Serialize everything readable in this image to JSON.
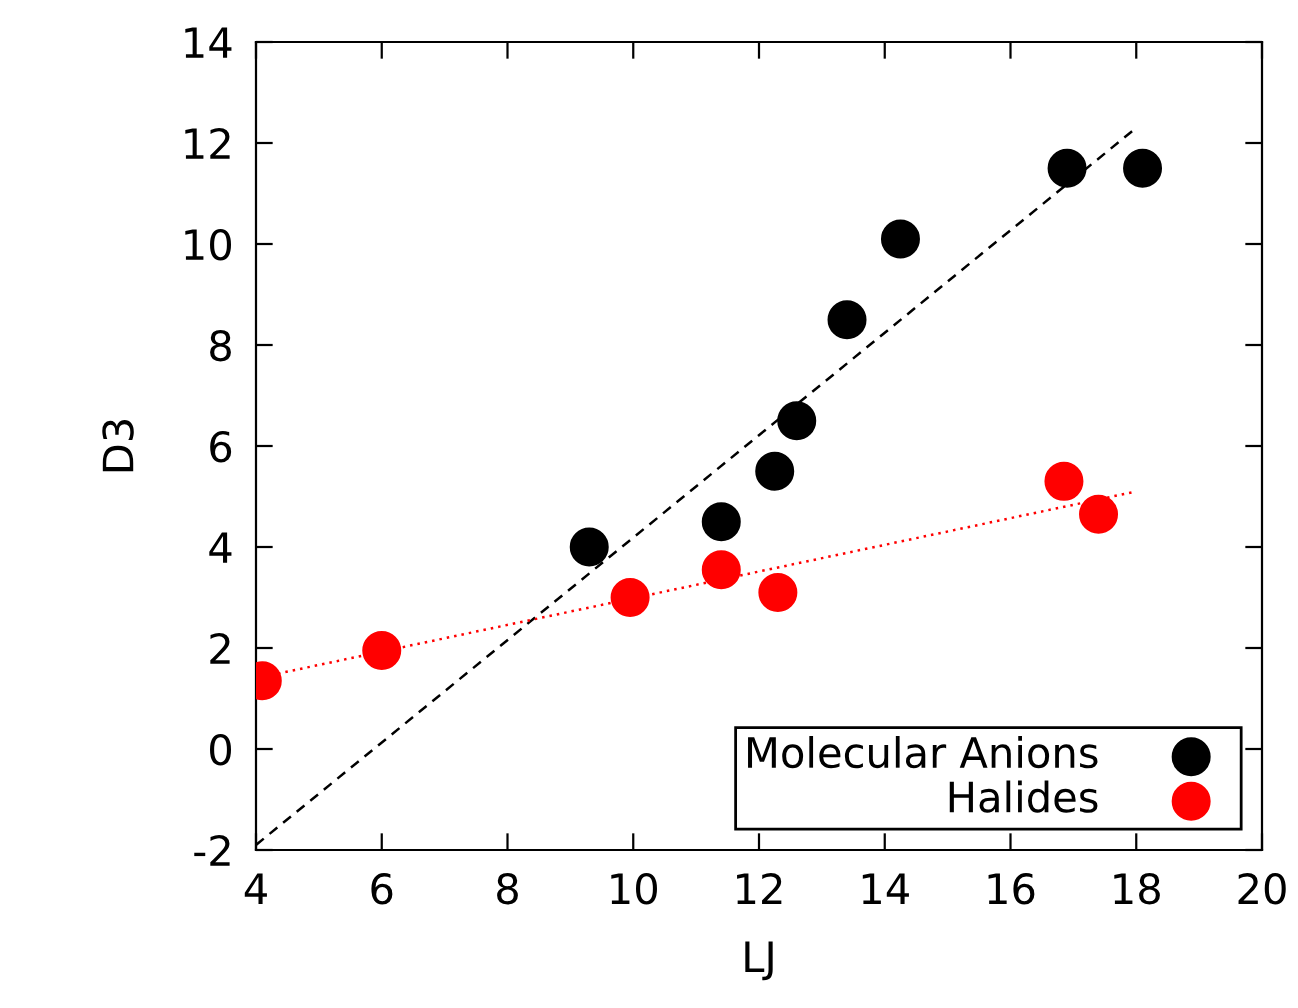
{
  "chart_data": {
    "type": "scatter",
    "xlabel": "LJ",
    "ylabel": "D3",
    "xlim": [
      4,
      20
    ],
    "xticks": [
      4,
      6,
      8,
      10,
      12,
      14,
      16,
      18,
      20
    ],
    "ylim": [
      -2,
      14
    ],
    "yticks": [
      -2,
      0,
      2,
      4,
      6,
      8,
      10,
      12,
      14
    ],
    "grid": false,
    "legend": "bottom right",
    "series": [
      {
        "name": "Molecular Anions",
        "marker": "circle",
        "color": "#000000",
        "x": [
          9.3,
          11.4,
          12.25,
          12.6,
          13.4,
          14.25,
          16.9,
          18.1
        ],
        "values": [
          4.0,
          4.5,
          5.5,
          6.5,
          8.5,
          10.1,
          11.5,
          11.5
        ]
      },
      {
        "name": "Halides",
        "marker": "circle",
        "color": "#ff0000",
        "x": [
          4.1,
          6.0,
          9.95,
          11.4,
          12.3,
          16.85,
          17.4
        ],
        "values": [
          1.35,
          1.95,
          3.0,
          3.55,
          3.1,
          5.3,
          4.65
        ]
      },
      {
        "type": "line",
        "color": "#000000",
        "line_style": "dashed",
        "x": [
          4,
          18
        ],
        "values": [
          -1.9,
          12.3
        ]
      },
      {
        "type": "line",
        "color": "#ff0000",
        "line_style": "dotted",
        "x": [
          4,
          18
        ],
        "values": [
          1.4,
          5.1
        ]
      }
    ]
  }
}
